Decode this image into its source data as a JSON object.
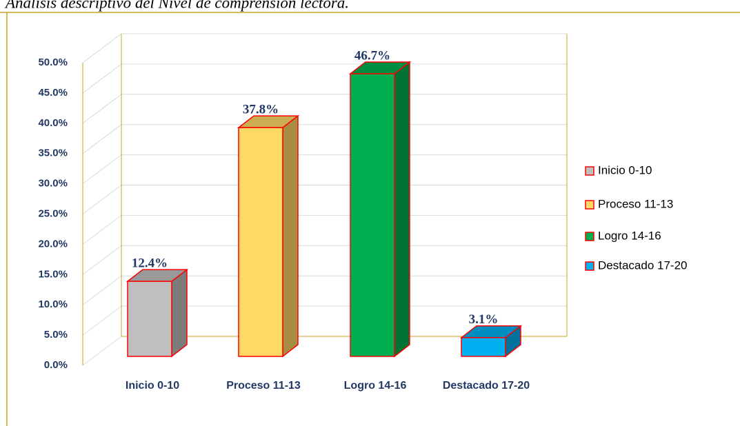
{
  "chart_data": {
    "type": "bar3d",
    "title": "Análisis descriptivo del Nivel de comprensión lectora.",
    "categories": [
      "Inicio 0-10",
      "Proceso 11-13",
      "Logro 14-16",
      "Destacado 17-20"
    ],
    "values": [
      12.4,
      37.8,
      46.7,
      3.1
    ],
    "value_labels": [
      "12.4%",
      "37.8%",
      "46.7%",
      "3.1%"
    ],
    "colors": [
      "#bfbfbf",
      "#ffd966",
      "#00b050",
      "#00b0f0"
    ],
    "ylim": [
      0,
      50
    ],
    "yticks": [
      {
        "value": 0,
        "label": "0.0%"
      },
      {
        "value": 5,
        "label": "5.0%"
      },
      {
        "value": 10,
        "label": "10.0%"
      },
      {
        "value": 15,
        "label": "15.0%"
      },
      {
        "value": 20,
        "label": "20.0%"
      },
      {
        "value": 25,
        "label": "25.0%"
      },
      {
        "value": 30,
        "label": "30.0%"
      },
      {
        "value": 35,
        "label": "35.0%"
      },
      {
        "value": 40,
        "label": "40.0%"
      },
      {
        "value": 45,
        "label": "45.0%"
      },
      {
        "value": 50,
        "label": "50.0%"
      }
    ],
    "grid": true,
    "legend": "right"
  }
}
